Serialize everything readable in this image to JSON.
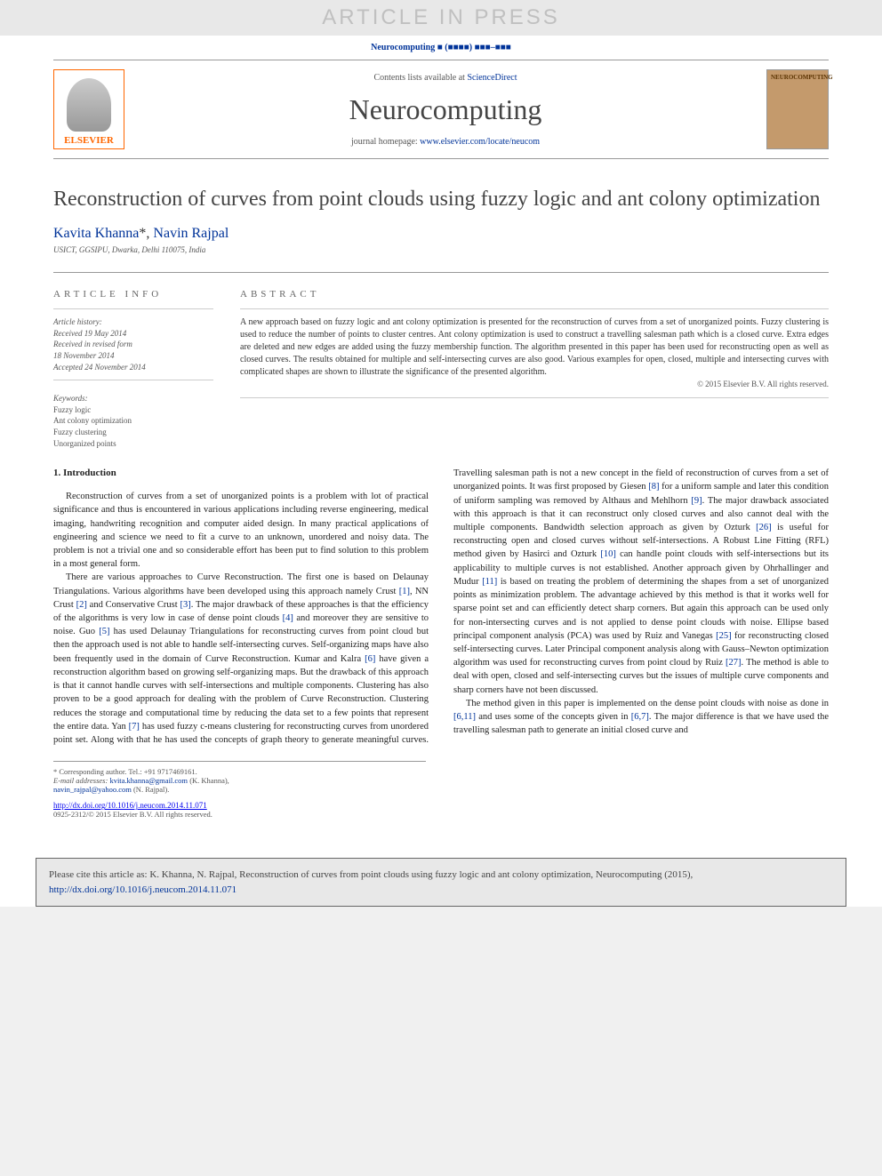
{
  "banner": {
    "text": "ARTICLE IN PRESS"
  },
  "journalRef": "Neurocomputing ■ (■■■■) ■■■–■■■",
  "header": {
    "contents_prefix": "Contents lists available at ",
    "contents_link": "ScienceDirect",
    "journal_name": "Neurocomputing",
    "homepage_prefix": "journal homepage: ",
    "homepage_link": "www.elsevier.com/locate/neucom",
    "elsevier_label": "ELSEVIER",
    "cover_title": "NEUROCOMPUTING"
  },
  "article": {
    "title": "Reconstruction of curves from point clouds using fuzzy logic and ant colony optimization",
    "authors_html": "Kavita Khanna *, Navin Rajpal",
    "author1": "Kavita Khanna",
    "author_marker": "*",
    "author_sep": ", ",
    "author2": "Navin Rajpal",
    "affiliation": "USICT, GGSIPU, Dwarka, Delhi 110075, India"
  },
  "info": {
    "heading": "ARTICLE INFO",
    "history_label": "Article history:",
    "received": "Received 19 May 2014",
    "revised": "Received in revised form",
    "revised_date": "18 November 2014",
    "accepted": "Accepted 24 November 2014",
    "keywords_label": "Keywords:",
    "keywords": [
      "Fuzzy logic",
      "Ant colony optimization",
      "Fuzzy clustering",
      "Unorganized points"
    ]
  },
  "abstract": {
    "heading": "ABSTRACT",
    "text": "A new approach based on fuzzy logic and ant colony optimization is presented for the reconstruction of curves from a set of unorganized points. Fuzzy clustering is used to reduce the number of points to cluster centres. Ant colony optimization is used to construct a travelling salesman path which is a closed curve. Extra edges are deleted and new edges are added using the fuzzy membership function. The algorithm presented in this paper has been used for reconstructing open as well as closed curves. The results obtained for multiple and self-intersecting curves are also good. Various examples for open, closed, multiple and intersecting curves with complicated shapes are shown to illustrate the significance of the presented algorithm.",
    "copyright": "© 2015 Elsevier B.V. All rights reserved."
  },
  "body": {
    "section1_heading": "1.  Introduction",
    "para1": "Reconstruction of curves from a set of unorganized points is a problem with lot of practical significance and thus is encountered in various applications including reverse engineering, medical imaging, handwriting recognition and computer aided design. In many practical applications of engineering and science we need to fit a curve to an unknown, unordered and noisy data. The problem is not a trivial one and so considerable effort has been put to find solution to this problem in a most general form.",
    "para2_a": "There are various approaches to Curve Reconstruction. The first one is based on Delaunay Triangulations. Various algorithms have been developed using this approach namely Crust ",
    "ref1": "[1]",
    "para2_b": ", NN Crust ",
    "ref2": "[2]",
    "para2_c": " and Conservative Crust ",
    "ref3": "[3]",
    "para2_d": ". The major drawback of these approaches is that the efficiency of the algorithms is very low in case of dense point clouds ",
    "ref4": "[4]",
    "para2_e": " and moreover they are sensitive to noise. Guo ",
    "ref5": "[5]",
    "para2_f": " has used Delaunay Triangulations for reconstructing curves from point cloud but then the approach used is not able to handle self-intersecting curves. Self-organizing maps have also been frequently used in the domain of Curve Reconstruction. Kumar and Kalra ",
    "ref6": "[6]",
    "para2_g": " have given a reconstruction algorithm based on growing self-organizing maps. But the drawback of this approach is that it cannot handle curves with self-intersections and multiple components. Clustering has also proven to be a good approach for dealing with the problem of Curve Reconstruction. Clustering reduces the storage and computational time by reducing the data set to a few points that",
    "para3_a": "represent the entire data. Yan ",
    "ref7": "[7]",
    "para3_b": " has used fuzzy c-means clustering for reconstructing curves from unordered point set. Along with that he has used the concepts of graph theory to generate meaningful curves. Travelling salesman path is not a new concept in the field of reconstruction of curves from a set of unorganized points. It was first proposed by Giesen ",
    "ref8": "[8]",
    "para3_c": " for a uniform sample and later this condition of uniform sampling was removed by Althaus and Mehlhorn ",
    "ref9": "[9]",
    "para3_d": ". The major drawback associated with this approach is that it can reconstruct only closed curves and also cannot deal with the multiple components. Bandwidth selection approach as given by Ozturk ",
    "ref26": "[26]",
    "para3_e": " is useful for reconstructing open and closed curves without self-intersections. A Robust Line Fitting (RFL) method given by Hasirci and Ozturk ",
    "ref10": "[10]",
    "para3_f": " can handle point clouds with self-intersections but its applicability to multiple curves is not established. Another approach given by Ohrhallinger and Mudur ",
    "ref11": "[11]",
    "para3_g": " is based on treating the problem of determining the shapes from a set of unorganized points as minimization problem. The advantage achieved by this method is that it works well for sparse point set and can efficiently detect sharp corners. But again this approach can be used only for non-intersecting curves and is not applied to dense point clouds with noise. Ellipse based principal component analysis (PCA) was used by Ruiz and Vanegas ",
    "ref25": "[25]",
    "para3_h": " for reconstructing closed self-intersecting curves. Later Principal component analysis along with Gauss–Newton optimization algorithm was used for reconstructing curves from point cloud by Ruiz ",
    "ref27": "[27]",
    "para3_i": ". The method is able to deal with open, closed and self-intersecting curves but the issues of multiple curve components and sharp corners have not been discussed.",
    "para4_a": "The method given in this paper is implemented on the dense point clouds with noise as done in ",
    "ref6_11": "[6,11]",
    "para4_b": " and uses some of the concepts given in ",
    "ref6_7": "[6,7]",
    "para4_c": ". The major difference is that we have used the travelling salesman path to generate an initial closed curve and"
  },
  "footnotes": {
    "corresponding": "* Corresponding author. Tel.: +91 9717469161.",
    "email_label": "E-mail addresses: ",
    "email1": "kvita.khanna@gmail.com",
    "email1_name": " (K. Khanna),",
    "email2": "navin_rajpal@yahoo.com",
    "email2_name": " (N. Rajpal)."
  },
  "doi": {
    "link": "http://dx.doi.org/10.1016/j.neucom.2014.11.071",
    "copyright": "0925-2312/© 2015 Elsevier B.V. All rights reserved."
  },
  "citation": {
    "text_a": "Please cite this article as: K. Khanna, N. Rajpal, Reconstruction of curves from point clouds using fuzzy logic and ant colony optimization, Neurocomputing (2015), ",
    "link": "http://dx.doi.org/10.1016/j.neucom.2014.11.071"
  },
  "colors": {
    "link": "#003399",
    "banner_bg": "#e8e8e8",
    "banner_text": "#c0c0c0",
    "elsevier_orange": "#ff6600",
    "cover_bg": "#c49a6c",
    "text": "#222222",
    "muted": "#555555",
    "border": "#999999"
  }
}
